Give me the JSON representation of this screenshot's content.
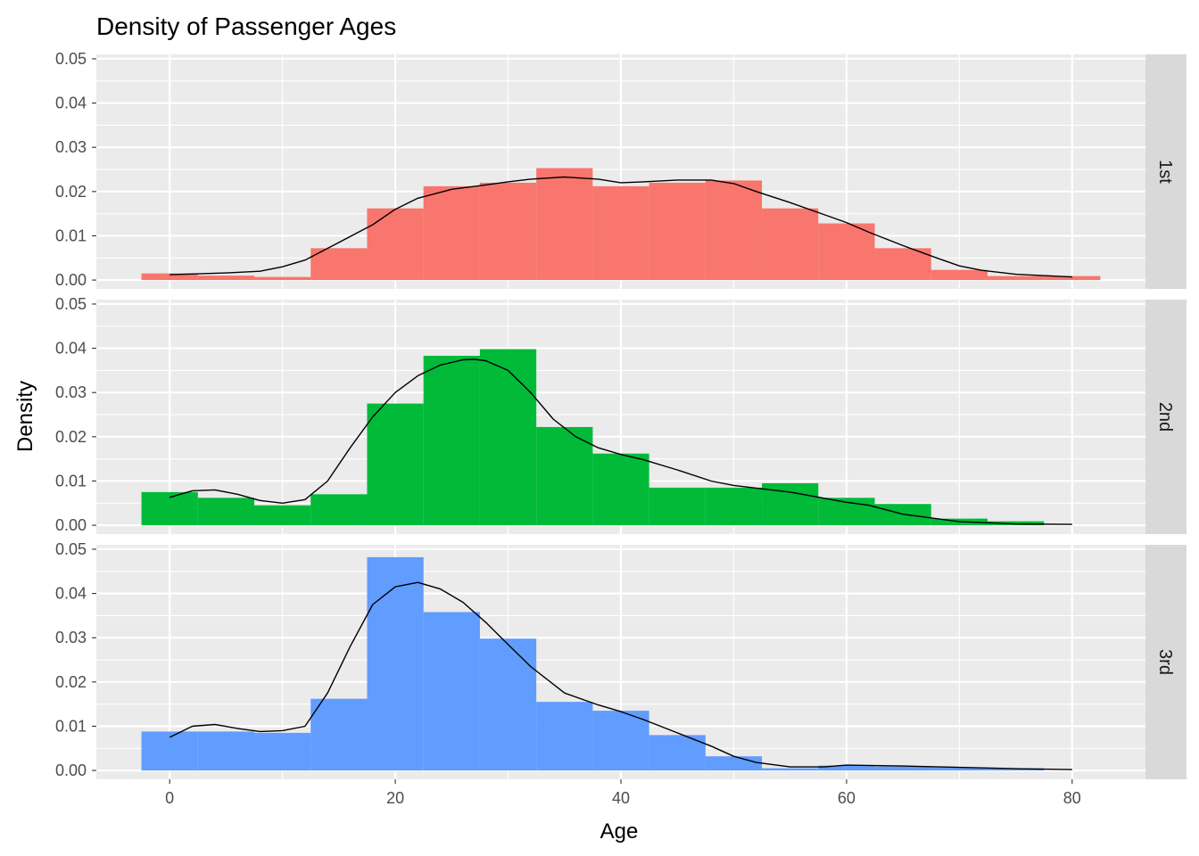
{
  "chart_data": {
    "type": "histogram",
    "title": "Density of Passenger Ages",
    "xlabel": "Age",
    "ylabel": "Density",
    "xlim": [
      -6.5,
      86.5
    ],
    "ylim": [
      -0.002,
      0.051
    ],
    "x_ticks": [
      0,
      20,
      40,
      60,
      80
    ],
    "x_tick_labels": [
      "0",
      "20",
      "40",
      "60",
      "80"
    ],
    "y_ticks": [
      0,
      0.01,
      0.02,
      0.03,
      0.04,
      0.05
    ],
    "y_tick_labels": [
      "0.00",
      "0.01",
      "0.02",
      "0.03",
      "0.04",
      "0.05"
    ],
    "bin_edges": [
      -2.5,
      2.5,
      7.5,
      12.5,
      17.5,
      22.5,
      27.5,
      32.5,
      37.5,
      42.5,
      47.5,
      52.5,
      57.5,
      62.5,
      67.5,
      72.5,
      77.5,
      82.5
    ],
    "background": "#EBEBEB",
    "grid": true,
    "strip_color": "#D9D9D9",
    "curve_color": "#000000",
    "series": [
      {
        "name": "1st",
        "color": "#F8766D",
        "values": [
          0.0015,
          0.001,
          0.0007,
          0.0072,
          0.0162,
          0.0212,
          0.022,
          0.0253,
          0.0212,
          0.022,
          0.0225,
          0.0162,
          0.0128,
          0.0072,
          0.0023,
          0.0009,
          0.0009
        ],
        "density_x": [
          0,
          5,
          8,
          10,
          12,
          15,
          18,
          20,
          22,
          25,
          28,
          30,
          32,
          35,
          38,
          40,
          42,
          45,
          48,
          50,
          52,
          55,
          58,
          60,
          62,
          65,
          68,
          70,
          72,
          75,
          80
        ],
        "density_y": [
          0.0012,
          0.0016,
          0.002,
          0.003,
          0.0045,
          0.0085,
          0.0125,
          0.016,
          0.0185,
          0.0205,
          0.0215,
          0.0222,
          0.0228,
          0.0233,
          0.0228,
          0.022,
          0.0222,
          0.0226,
          0.0226,
          0.0218,
          0.02,
          0.0175,
          0.0148,
          0.013,
          0.0108,
          0.0078,
          0.005,
          0.0032,
          0.0022,
          0.0013,
          0.0007
        ]
      },
      {
        "name": "2nd",
        "color": "#00BA38",
        "values": [
          0.0075,
          0.0062,
          0.0045,
          0.007,
          0.0275,
          0.0383,
          0.0398,
          0.0222,
          0.0162,
          0.0085,
          0.0085,
          0.0095,
          0.0062,
          0.0048,
          0.0015,
          0.0009,
          0
        ],
        "density_x": [
          0,
          2,
          4,
          6,
          8,
          10,
          12,
          14,
          16,
          18,
          20,
          22,
          24,
          26,
          27,
          28,
          30,
          32,
          34,
          36,
          38,
          40,
          42,
          45,
          48,
          50,
          55,
          60,
          62,
          65,
          70,
          75,
          80
        ],
        "density_y": [
          0.0063,
          0.0078,
          0.008,
          0.007,
          0.0056,
          0.005,
          0.0058,
          0.01,
          0.0175,
          0.0245,
          0.03,
          0.0338,
          0.0362,
          0.0374,
          0.0375,
          0.0372,
          0.035,
          0.03,
          0.024,
          0.02,
          0.0175,
          0.016,
          0.0148,
          0.0125,
          0.01,
          0.009,
          0.0075,
          0.0052,
          0.0045,
          0.0025,
          0.0008,
          0.0003,
          0.0002
        ]
      },
      {
        "name": "3rd",
        "color": "#619CFF",
        "values": [
          0.0088,
          0.0088,
          0.0085,
          0.0162,
          0.0482,
          0.0358,
          0.0298,
          0.0155,
          0.0135,
          0.008,
          0.0032,
          0.0005,
          0.0011,
          0.0009,
          0.0007,
          0.0005,
          0
        ],
        "density_x": [
          0,
          2,
          4,
          6,
          8,
          10,
          12,
          14,
          16,
          18,
          20,
          22,
          24,
          26,
          28,
          30,
          32,
          35,
          38,
          40,
          42,
          45,
          48,
          50,
          52,
          55,
          58,
          60,
          65,
          70,
          75,
          80
        ],
        "density_y": [
          0.0075,
          0.01,
          0.0104,
          0.0095,
          0.0088,
          0.009,
          0.01,
          0.0175,
          0.028,
          0.0375,
          0.0415,
          0.0425,
          0.041,
          0.038,
          0.0335,
          0.0285,
          0.0235,
          0.0175,
          0.0148,
          0.0133,
          0.0115,
          0.0085,
          0.0055,
          0.0032,
          0.0018,
          0.0008,
          0.0008,
          0.0012,
          0.001,
          0.0007,
          0.0004,
          0.0002
        ]
      }
    ]
  }
}
